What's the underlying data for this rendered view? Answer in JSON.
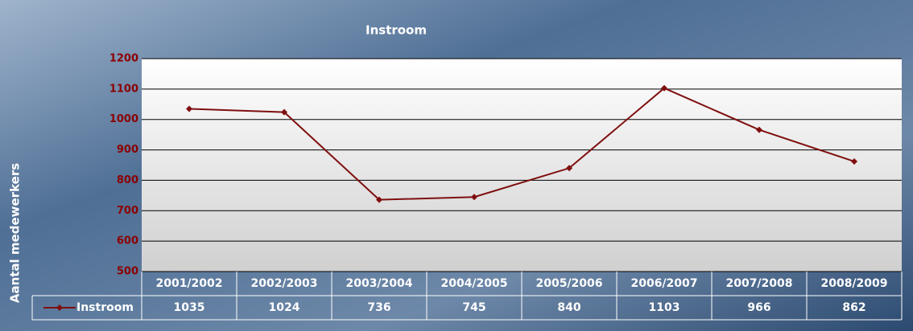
{
  "chart_data": {
    "type": "line",
    "title": "Instroom",
    "y_label": "Aantal medewerkers",
    "categories": [
      "2001/2002",
      "2002/2003",
      "2003/2004",
      "2004/2005",
      "2005/2006",
      "2006/2007",
      "2007/2008",
      "2008/2009"
    ],
    "series": [
      {
        "name": "Instroom",
        "color": "#7f0f0f",
        "values": [
          1035,
          1024,
          736,
          745,
          840,
          1103,
          966,
          862
        ]
      }
    ],
    "ylim": [
      500,
      1200
    ],
    "yticks": [
      500,
      600,
      700,
      800,
      900,
      1000,
      1100,
      1200
    ],
    "grid": true,
    "data_table": true
  }
}
